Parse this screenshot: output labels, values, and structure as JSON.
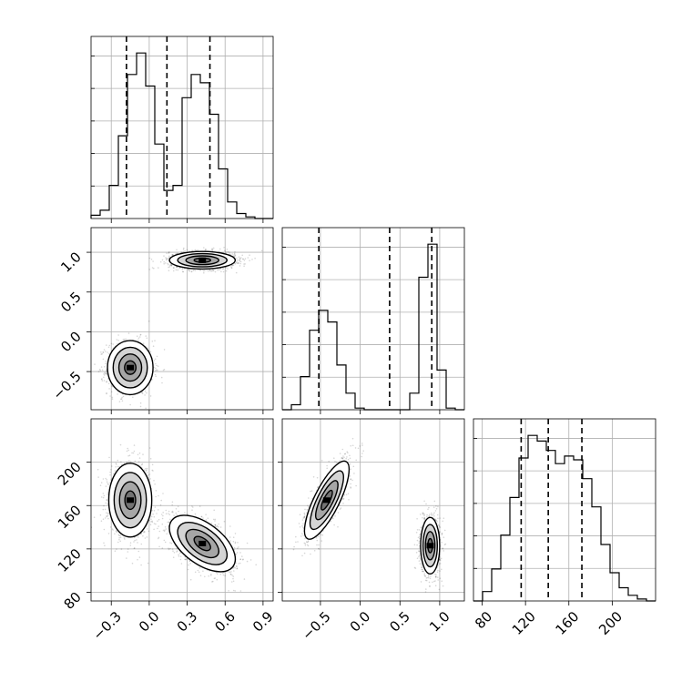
{
  "chart_data": {
    "type": "corner",
    "parameters": [
      {
        "ticks": [
          -0.3,
          0.0,
          0.3,
          0.6,
          0.9
        ],
        "tick_labels": [
          "−0.3",
          "0.0",
          "0.3",
          "0.6",
          "0.9"
        ],
        "range": [
          -0.46,
          0.98
        ]
      },
      {
        "ticks": [
          -0.5,
          0.0,
          0.5,
          1.0
        ],
        "tick_labels": [
          "−0.5",
          "0.0",
          "0.5",
          "1.0"
        ],
        "range": [
          -0.98,
          1.31
        ]
      },
      {
        "ticks": [
          80,
          120,
          160,
          200
        ],
        "tick_labels": [
          "80",
          "120",
          "160",
          "200"
        ],
        "range": [
          72,
          240
        ]
      }
    ],
    "histograms": [
      {
        "param": 0,
        "bins_start": -0.46,
        "bin_width": 0.072,
        "counts": [
          0.02,
          0.05,
          0.2,
          0.5,
          0.87,
          1.0,
          0.8,
          0.45,
          0.17,
          0.2,
          0.73,
          0.87,
          0.82,
          0.63,
          0.3,
          0.1,
          0.03,
          0.01,
          0.0,
          0.0
        ],
        "quantiles": [
          -0.18,
          0.14,
          0.48
        ]
      },
      {
        "param": 1,
        "bins_start": -0.98,
        "bin_width": 0.1145,
        "counts": [
          0.0,
          0.03,
          0.2,
          0.48,
          0.6,
          0.53,
          0.27,
          0.1,
          0.01,
          0.0,
          0.0,
          0.0,
          0.0,
          0.0,
          0.1,
          0.8,
          1.0,
          0.24,
          0.01,
          0.0
        ],
        "quantiles": [
          -0.52,
          0.37,
          0.9
        ]
      },
      {
        "param": 2,
        "bins_start": 72,
        "bin_width": 8.4,
        "counts": [
          0.0,
          0.05,
          0.17,
          0.35,
          0.55,
          0.76,
          0.88,
          0.85,
          0.8,
          0.73,
          0.77,
          0.75,
          0.65,
          0.5,
          0.3,
          0.15,
          0.07,
          0.03,
          0.01,
          0.0
        ],
        "quantiles": [
          116,
          141,
          172
        ]
      }
    ],
    "pairs": [
      {
        "x": 0,
        "y": 1,
        "modes": [
          {
            "cx": -0.15,
            "cy": -0.45,
            "sx": 0.09,
            "sy": 0.17,
            "rho": 0.0,
            "weight": 0.45
          },
          {
            "cx": 0.42,
            "cy": 0.9,
            "sx": 0.13,
            "sy": 0.055,
            "rho": 0.0,
            "weight": 0.55
          }
        ]
      },
      {
        "x": 0,
        "y": 2,
        "modes": [
          {
            "cx": -0.15,
            "cy": 165,
            "sx": 0.085,
            "sy": 17,
            "rho": 0.0,
            "weight": 0.45
          },
          {
            "cx": 0.42,
            "cy": 125,
            "sx": 0.13,
            "sy": 13,
            "rho": -0.55,
            "weight": 0.55
          }
        ]
      },
      {
        "x": 1,
        "y": 2,
        "modes": [
          {
            "cx": -0.42,
            "cy": 165,
            "sx": 0.14,
            "sy": 18,
            "rho": 0.78,
            "weight": 0.45
          },
          {
            "cx": 0.88,
            "cy": 123,
            "sx": 0.06,
            "sy": 13,
            "rho": 0.0,
            "weight": 0.55
          }
        ]
      }
    ],
    "contour_levels_sigma": [
      0.5,
      1.0,
      1.5,
      2.0
    ],
    "grid": true,
    "legend": "none",
    "title": "",
    "colors": {
      "line": "#000000",
      "density": "#808080",
      "grid": "#b0b0b0",
      "frame": "#000000"
    }
  }
}
